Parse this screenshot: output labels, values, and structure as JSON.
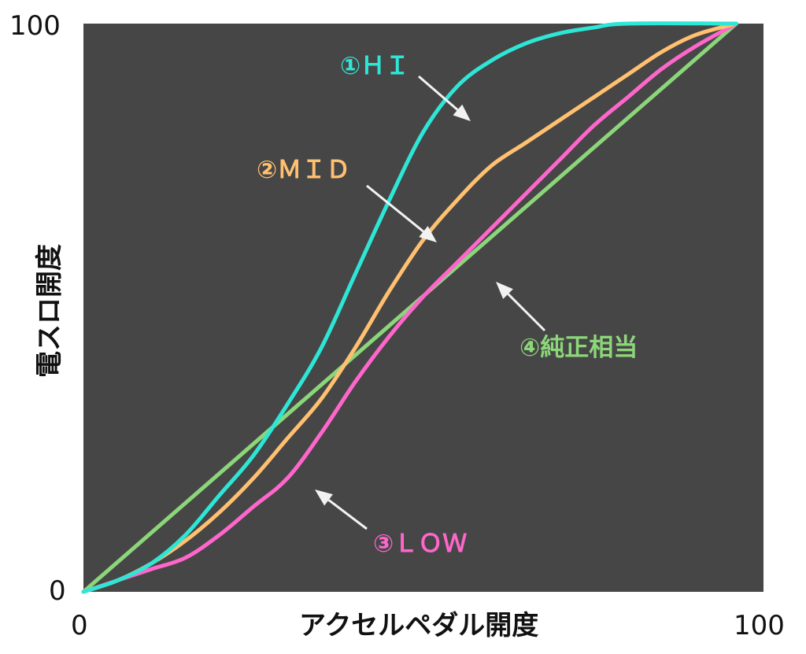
{
  "chart_data": {
    "type": "line",
    "xlabel": "アクセルペダル開度",
    "ylabel": "電スロ開度",
    "xlim": [
      0,
      100
    ],
    "ylim": [
      0,
      100
    ],
    "x_ticks": [
      "0",
      "100"
    ],
    "y_ticks": [
      "0",
      "100"
    ],
    "grid": false,
    "plot_background": "#464646",
    "series": [
      {
        "name": "①ＨＩ",
        "color": "#2ee6d6",
        "points": [
          [
            0,
            0
          ],
          [
            5,
            2
          ],
          [
            10,
            5
          ],
          [
            15,
            10
          ],
          [
            20,
            17
          ],
          [
            25,
            24
          ],
          [
            30,
            33
          ],
          [
            35,
            43
          ],
          [
            40,
            56
          ],
          [
            45,
            69
          ],
          [
            50,
            81
          ],
          [
            55,
            89
          ],
          [
            60,
            93.5
          ],
          [
            65,
            96.5
          ],
          [
            70,
            98.3
          ],
          [
            75,
            99.3
          ],
          [
            80,
            100
          ],
          [
            96,
            100
          ]
        ]
      },
      {
        "name": "②ＭＩＤ",
        "color": "#ffc070",
        "points": [
          [
            0,
            0
          ],
          [
            5,
            2
          ],
          [
            10,
            5
          ],
          [
            15,
            9
          ],
          [
            20,
            14
          ],
          [
            25,
            20
          ],
          [
            30,
            27
          ],
          [
            35,
            34
          ],
          [
            40,
            43
          ],
          [
            45,
            53
          ],
          [
            50,
            62
          ],
          [
            55,
            69
          ],
          [
            60,
            75
          ],
          [
            65,
            79
          ],
          [
            70,
            83
          ],
          [
            75,
            87
          ],
          [
            80,
            91
          ],
          [
            85,
            95
          ],
          [
            90,
            98
          ],
          [
            96,
            100
          ]
        ]
      },
      {
        "name": "③ＬＯＷ",
        "color": "#ff66cc",
        "points": [
          [
            0,
            0
          ],
          [
            5,
            2
          ],
          [
            10,
            4
          ],
          [
            15,
            6
          ],
          [
            20,
            10
          ],
          [
            25,
            15
          ],
          [
            30,
            20
          ],
          [
            35,
            28
          ],
          [
            40,
            37
          ],
          [
            45,
            45
          ],
          [
            50,
            52
          ],
          [
            55,
            58
          ],
          [
            60,
            64
          ],
          [
            65,
            70
          ],
          [
            70,
            76
          ],
          [
            75,
            82
          ],
          [
            80,
            87
          ],
          [
            85,
            92
          ],
          [
            90,
            96
          ],
          [
            96,
            100
          ]
        ]
      },
      {
        "name": "④純正相当",
        "color": "#8cd67a",
        "points": [
          [
            0,
            0
          ],
          [
            96,
            100
          ]
        ]
      }
    ]
  }
}
